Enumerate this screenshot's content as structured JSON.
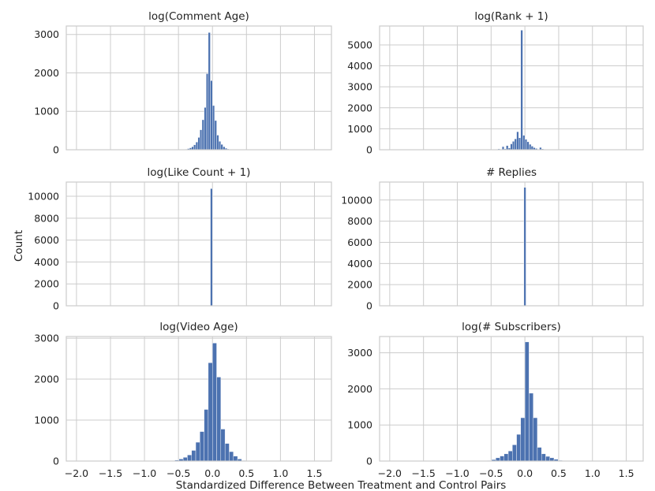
{
  "figure": {
    "ylabel": "Count",
    "xlabel": "Standardized Difference Between Treatment and Control Pairs"
  },
  "chart_data": [
    {
      "type": "bar",
      "title": "log(Comment Age)",
      "xlim": [
        -2.15,
        1.75
      ],
      "ylim": [
        0,
        3220
      ],
      "xticks": [
        -2.0,
        -1.5,
        -1.0,
        -0.5,
        0.0,
        0.5,
        1.0,
        1.5
      ],
      "yticks": [
        0,
        1000,
        2000,
        3000
      ],
      "grid": true,
      "bin_width": 0.0308,
      "bin_starts": [
        -0.4,
        -0.369,
        -0.338,
        -0.308,
        -0.277,
        -0.246,
        -0.215,
        -0.185,
        -0.154,
        -0.123,
        -0.092,
        -0.062,
        -0.031,
        0.0,
        0.031,
        0.062,
        0.092,
        0.123,
        0.154,
        0.185,
        0.215,
        0.246,
        0.277
      ],
      "values": [
        15,
        30,
        50,
        80,
        130,
        200,
        320,
        520,
        780,
        1100,
        1980,
        3050,
        1800,
        1150,
        760,
        380,
        220,
        140,
        80,
        40,
        20,
        10,
        5
      ]
    },
    {
      "type": "bar",
      "title": "log(Rank + 1)",
      "xlim": [
        -2.15,
        1.75
      ],
      "ylim": [
        0,
        5900
      ],
      "xticks": [
        -2.0,
        -1.5,
        -1.0,
        -0.5,
        0.0,
        0.5,
        1.0,
        1.5
      ],
      "yticks": [
        0,
        1000,
        2000,
        3000,
        4000,
        5000
      ],
      "grid": true,
      "bin_width": 0.0308,
      "bin_starts": [
        -0.4,
        -0.369,
        -0.338,
        -0.308,
        -0.277,
        -0.246,
        -0.215,
        -0.185,
        -0.154,
        -0.123,
        -0.092,
        -0.062,
        -0.031,
        0.0,
        0.031,
        0.062,
        0.092,
        0.123,
        0.154,
        0.185,
        0.215,
        0.246,
        0.277,
        0.308,
        0.338,
        0.369
      ],
      "values": [
        40,
        20,
        150,
        40,
        200,
        80,
        280,
        400,
        520,
        860,
        570,
        5700,
        690,
        500,
        380,
        260,
        170,
        100,
        60,
        20,
        110,
        40,
        20,
        10,
        5,
        5
      ]
    },
    {
      "type": "bar",
      "title": "log(Like Count + 1)",
      "xlim": [
        -2.15,
        1.75
      ],
      "ylim": [
        0,
        11300
      ],
      "xticks": [
        -2.0,
        -1.5,
        -1.0,
        -0.5,
        0.0,
        0.5,
        1.0,
        1.5
      ],
      "yticks": [
        0,
        2000,
        4000,
        6000,
        8000,
        10000
      ],
      "grid": true,
      "bin_width": 0.0308,
      "bin_starts": [
        -0.031
      ],
      "values": [
        10700
      ]
    },
    {
      "type": "bar",
      "title": "# Replies",
      "xlim": [
        -2.15,
        1.75
      ],
      "ylim": [
        0,
        11700
      ],
      "xticks": [
        -2.0,
        -1.5,
        -1.0,
        -0.5,
        0.0,
        0.5,
        1.0,
        1.5
      ],
      "yticks": [
        0,
        2000,
        4000,
        6000,
        8000,
        10000
      ],
      "grid": true,
      "bin_width": 0.0308,
      "bin_starts": [
        -0.015
      ],
      "values": [
        11200
      ]
    },
    {
      "type": "bar",
      "title": "log(Video Age)",
      "xlim": [
        -2.15,
        1.75
      ],
      "ylim": [
        0,
        3040
      ],
      "xticks": [
        -2.0,
        -1.5,
        -1.0,
        -0.5,
        0.0,
        0.5,
        1.0,
        1.5
      ],
      "yticks": [
        0,
        1000,
        2000,
        3000
      ],
      "grid": true,
      "bin_width": 0.0615,
      "bin_starts": [
        -0.615,
        -0.554,
        -0.492,
        -0.431,
        -0.369,
        -0.308,
        -0.246,
        -0.185,
        -0.123,
        -0.062,
        0.0,
        0.062,
        0.123,
        0.185,
        0.246,
        0.308,
        0.369,
        0.431
      ],
      "values": [
        8,
        25,
        50,
        90,
        150,
        260,
        460,
        720,
        1260,
        2400,
        2880,
        2050,
        780,
        430,
        230,
        120,
        50,
        15
      ]
    },
    {
      "type": "bar",
      "title": "log(# Subscribers)",
      "xlim": [
        -2.15,
        1.75
      ],
      "ylim": [
        0,
        3450
      ],
      "xticks": [
        -2.0,
        -1.5,
        -1.0,
        -0.5,
        0.0,
        0.5,
        1.0,
        1.5
      ],
      "yticks": [
        0,
        1000,
        2000,
        3000
      ],
      "grid": true,
      "bin_width": 0.0615,
      "bin_starts": [
        -0.615,
        -0.554,
        -0.492,
        -0.431,
        -0.369,
        -0.308,
        -0.246,
        -0.185,
        -0.123,
        -0.062,
        0.0,
        0.062,
        0.123,
        0.185,
        0.246,
        0.308,
        0.369,
        0.431,
        0.492
      ],
      "values": [
        5,
        15,
        40,
        90,
        140,
        200,
        280,
        450,
        740,
        1200,
        3300,
        1880,
        1200,
        380,
        200,
        130,
        90,
        50,
        20
      ]
    }
  ]
}
